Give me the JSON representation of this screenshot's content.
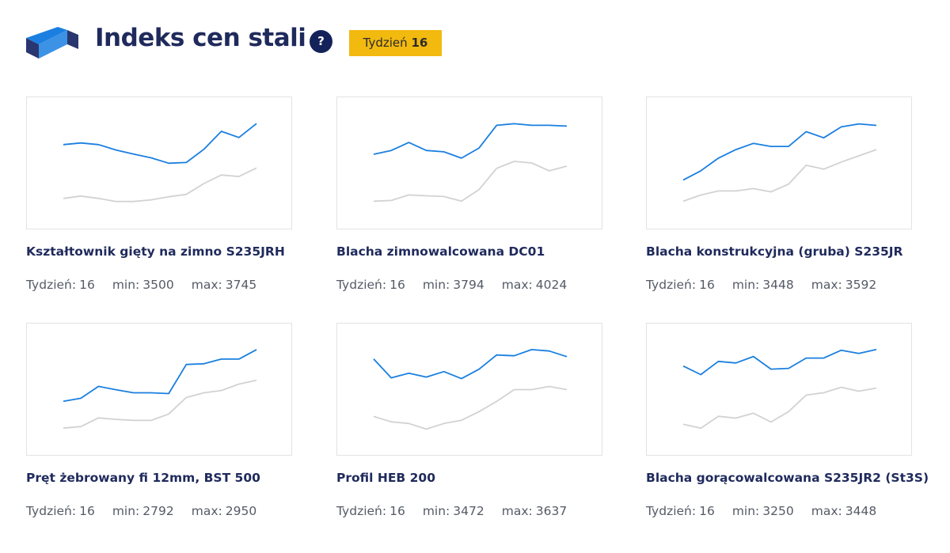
{
  "header": {
    "title": "Indeks cen stali",
    "help": "?",
    "badge_label": "Tydzień",
    "badge_week": 16
  },
  "chart_data": [
    {
      "type": "line",
      "title": "Kształtownik gięty na zimno S235JRH",
      "week_label": "Tydzień:",
      "week": 16,
      "min_label": "min:",
      "min": 3500,
      "max_label": "max:",
      "max": 3745,
      "ylim": [
        3165,
        3890
      ],
      "series": [
        {
          "color": "#1a7fe0",
          "values": [
            3629,
            3638,
            3629,
            3599,
            3577,
            3556,
            3526,
            3530,
            3603,
            3702,
            3668,
            3745
          ]
        },
        {
          "color": "#d2d2d2",
          "values": [
            3332,
            3345,
            3332,
            3315,
            3315,
            3324,
            3341,
            3354,
            3414,
            3461,
            3453,
            3500
          ]
        }
      ]
    },
    {
      "type": "line",
      "title": "Blacha zimnowalcowana DC01",
      "week_label": "Tydzień:",
      "week": 16,
      "min_label": "min:",
      "min": 3794,
      "max_label": "max:",
      "max": 4024,
      "ylim": [
        3434,
        4190
      ],
      "series": [
        {
          "color": "#1a7fe0",
          "values": [
            3862,
            3884,
            3930,
            3884,
            3876,
            3840,
            3898,
            4029,
            4038,
            4029,
            4029,
            4024
          ]
        },
        {
          "color": "#d2d2d2",
          "values": [
            3592,
            3596,
            3628,
            3623,
            3619,
            3592,
            3659,
            3781,
            3821,
            3812,
            3767,
            3794
          ]
        }
      ]
    },
    {
      "type": "line",
      "title": "Blacha konstrukcyjna (gruba) S235JR",
      "week_label": "Tydzień:",
      "week": 16,
      "min_label": "min:",
      "min": 3448,
      "max_label": "max:",
      "max": 3592,
      "ylim": [
        2978,
        3759
      ],
      "series": [
        {
          "color": "#1a7fe0",
          "values": [
            3267,
            3322,
            3397,
            3448,
            3485,
            3467,
            3467,
            3555,
            3518,
            3583,
            3601,
            3592
          ]
        },
        {
          "color": "#d2d2d2",
          "values": [
            3141,
            3178,
            3202,
            3202,
            3216,
            3197,
            3243,
            3355,
            3332,
            3374,
            3411,
            3448
          ]
        }
      ]
    },
    {
      "type": "line",
      "title": "Pręt żebrowany fi 12mm, BST 500",
      "week_label": "Tydzień:",
      "week": 16,
      "min_label": "min:",
      "min": 2792,
      "max_label": "max:",
      "max": 2950,
      "ylim": [
        2407,
        3084
      ],
      "series": [
        {
          "color": "#1a7fe0",
          "values": [
            2683,
            2699,
            2760,
            2743,
            2727,
            2727,
            2723,
            2873,
            2877,
            2901,
            2901,
            2950
          ]
        },
        {
          "color": "#d2d2d2",
          "values": [
            2545,
            2553,
            2598,
            2590,
            2585,
            2585,
            2618,
            2703,
            2727,
            2739,
            2772,
            2792
          ]
        }
      ]
    },
    {
      "type": "line",
      "title": "Profil HEB 200",
      "week_label": "Tydzień:",
      "week": 16,
      "min_label": "min:",
      "min": 3472,
      "max_label": "max:",
      "max": 3637,
      "ylim": [
        3146,
        3802
      ],
      "series": [
        {
          "color": "#1a7fe0",
          "values": [
            3625,
            3531,
            3554,
            3535,
            3562,
            3527,
            3574,
            3645,
            3641,
            3672,
            3665,
            3637
          ]
        },
        {
          "color": "#d2d2d2",
          "values": [
            3338,
            3311,
            3303,
            3275,
            3303,
            3319,
            3362,
            3413,
            3472,
            3472,
            3488,
            3472
          ]
        }
      ]
    },
    {
      "type": "line",
      "title": "Blacha gorącowalcowana S235JR2 (St3S)",
      "week_label": "Tydzień:",
      "week": 16,
      "min_label": "min:",
      "min": 3250,
      "max_label": "max:",
      "max": 3448,
      "ylim": [
        2907,
        3581
      ],
      "series": [
        {
          "color": "#1a7fe0",
          "values": [
            3363,
            3319,
            3387,
            3379,
            3412,
            3347,
            3351,
            3404,
            3404,
            3444,
            3428,
            3448
          ]
        },
        {
          "color": "#d2d2d2",
          "values": [
            3064,
            3044,
            3105,
            3096,
            3121,
            3076,
            3129,
            3214,
            3226,
            3254,
            3234,
            3250
          ]
        }
      ]
    }
  ]
}
